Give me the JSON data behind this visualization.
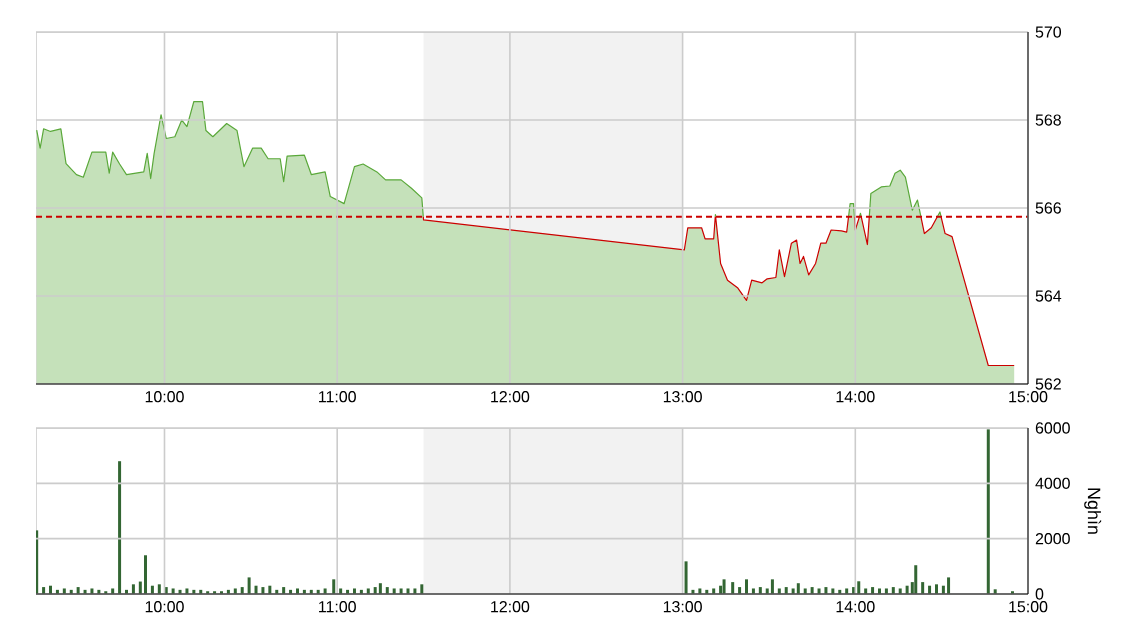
{
  "chart_data": [
    {
      "type": "area",
      "x": [
        9.26,
        9.28,
        9.3,
        9.34,
        9.4,
        9.43,
        9.49,
        9.53,
        9.58,
        9.66,
        9.68,
        9.7,
        9.74,
        9.78,
        9.88,
        9.9,
        9.92,
        9.94,
        9.98,
        10.01,
        10.06,
        10.1,
        10.13,
        10.17,
        10.22,
        10.24,
        10.28,
        10.36,
        10.42,
        10.46,
        10.51,
        10.56,
        10.6,
        10.67,
        10.69,
        10.71,
        10.81,
        10.85,
        10.93,
        10.96,
        11.04,
        11.1,
        11.15,
        11.23,
        11.28,
        11.37,
        11.43,
        11.49,
        11.5,
        13.01,
        13.03,
        13.11,
        13.13,
        13.18,
        13.19,
        13.22,
        13.26,
        13.32,
        13.37,
        13.4,
        13.46,
        13.49,
        13.54,
        13.56,
        13.59,
        13.63,
        13.66,
        13.68,
        13.7,
        13.73,
        13.77,
        13.8,
        13.83,
        13.86,
        13.92,
        13.95,
        13.97,
        13.99,
        14.0,
        14.03,
        14.07,
        14.09,
        14.15,
        14.2,
        14.23,
        14.26,
        14.29,
        14.33,
        14.36,
        14.4,
        14.44,
        14.49,
        14.52,
        14.56,
        14.77,
        14.92
      ],
      "series": [
        {
          "color": "#5aa83a",
          "values": [
            567.77,
            567.36,
            567.8,
            567.74,
            567.8,
            567.01,
            566.76,
            566.7,
            567.27,
            567.27,
            566.79,
            567.27,
            567.0,
            566.76,
            566.82,
            567.24,
            566.67,
            567.24,
            568.12,
            567.58,
            567.62,
            568.0,
            567.85,
            568.42,
            568.42,
            567.76,
            567.62,
            567.92,
            567.76,
            566.94,
            567.36,
            567.36,
            567.12,
            567.12,
            566.6,
            567.18,
            567.2,
            566.76,
            566.82,
            566.26,
            566.1,
            566.94,
            567.0,
            566.82,
            566.64,
            566.64,
            566.45,
            566.23,
            565.73,
            565.05,
            565.55,
            565.55,
            565.3,
            565.3,
            565.85,
            564.74,
            564.36,
            564.18,
            563.9,
            564.36,
            564.3,
            564.39,
            564.42,
            565.05,
            564.44,
            565.2,
            565.27,
            564.74,
            564.9,
            564.48,
            564.74,
            565.2,
            565.2,
            565.5,
            565.48,
            565.45,
            566.1,
            566.1,
            565.5,
            565.88,
            565.17,
            566.33,
            566.48,
            566.5,
            566.79,
            566.86,
            566.7,
            565.95,
            566.18,
            565.42,
            565.55,
            565.91,
            565.42,
            565.35,
            562.42,
            562.42
          ]
        }
      ],
      "xlim": [
        9.256,
        15
      ],
      "ylim": [
        562,
        570
      ],
      "xticks": [
        {
          "value": 10,
          "label": "10:00"
        },
        {
          "value": 11,
          "label": "11:00"
        },
        {
          "value": 12,
          "label": "12:00"
        },
        {
          "value": 13,
          "label": "13:00"
        },
        {
          "value": 14,
          "label": "14:00"
        },
        {
          "value": 15,
          "label": "15:00"
        }
      ],
      "yticks": [
        562,
        564,
        566,
        568,
        570
      ],
      "grid": true,
      "bands": [
        {
          "axis": "x",
          "from": 11.5,
          "to": 13,
          "color": "#f2f2f2"
        }
      ],
      "ref_lines": [
        {
          "axis": "y",
          "value": 565.8,
          "color": "#cc0000",
          "line_style": "dashed"
        }
      ]
    },
    {
      "type": "bar",
      "x": [
        9.26,
        9.3,
        9.34,
        9.38,
        9.42,
        9.46,
        9.5,
        9.54,
        9.58,
        9.62,
        9.66,
        9.7,
        9.74,
        9.78,
        9.82,
        9.86,
        9.89,
        9.93,
        9.97,
        10.01,
        10.05,
        10.09,
        10.13,
        10.17,
        10.21,
        10.25,
        10.29,
        10.33,
        10.37,
        10.41,
        10.45,
        10.49,
        10.53,
        10.57,
        10.61,
        10.65,
        10.69,
        10.73,
        10.77,
        10.81,
        10.85,
        10.89,
        10.93,
        10.98,
        11.02,
        11.06,
        11.1,
        11.14,
        11.18,
        11.22,
        11.25,
        11.29,
        11.33,
        11.37,
        11.41,
        11.45,
        11.49,
        13.02,
        13.06,
        13.1,
        13.14,
        13.18,
        13.22,
        13.24,
        13.29,
        13.33,
        13.37,
        13.41,
        13.45,
        13.49,
        13.52,
        13.56,
        13.6,
        13.64,
        13.67,
        13.71,
        13.75,
        13.79,
        13.83,
        13.87,
        13.91,
        13.95,
        13.99,
        14.02,
        14.06,
        14.1,
        14.14,
        14.18,
        14.22,
        14.26,
        14.3,
        14.33,
        14.35,
        14.39,
        14.43,
        14.47,
        14.51,
        14.54,
        14.77,
        14.81,
        14.91
      ],
      "series": [
        {
          "color": "#336633",
          "values": [
            2300,
            250,
            300,
            150,
            200,
            150,
            250,
            150,
            200,
            150,
            100,
            200,
            4800,
            150,
            350,
            450,
            1400,
            300,
            350,
            250,
            200,
            150,
            200,
            150,
            150,
            100,
            100,
            100,
            150,
            200,
            250,
            600,
            300,
            250,
            300,
            150,
            250,
            150,
            200,
            150,
            150,
            150,
            200,
            530,
            200,
            150,
            200,
            150,
            200,
            250,
            390,
            250,
            200,
            200,
            200,
            200,
            350,
            1180,
            150,
            200,
            150,
            200,
            300,
            530,
            430,
            250,
            530,
            200,
            250,
            200,
            530,
            200,
            250,
            200,
            390,
            200,
            250,
            200,
            250,
            200,
            150,
            200,
            250,
            460,
            200,
            250,
            200,
            200,
            250,
            200,
            300,
            430,
            1040,
            430,
            300,
            350,
            300,
            600,
            5950,
            170,
            100
          ]
        }
      ],
      "xlim": [
        9.256,
        15
      ],
      "ylim": [
        0,
        6000
      ],
      "xticks": [
        {
          "value": 10,
          "label": "10:00"
        },
        {
          "value": 11,
          "label": "11:00"
        },
        {
          "value": 12,
          "label": "12:00"
        },
        {
          "value": 13,
          "label": "13:00"
        },
        {
          "value": 14,
          "label": "14:00"
        },
        {
          "value": 15,
          "label": "15:00"
        }
      ],
      "yticks": [
        0,
        2000,
        4000,
        6000
      ],
      "ylabel": "Nghìn",
      "grid": true,
      "bands": [
        {
          "axis": "x",
          "from": 11.5,
          "to": 13,
          "color": "#f2f2f2"
        }
      ]
    }
  ]
}
